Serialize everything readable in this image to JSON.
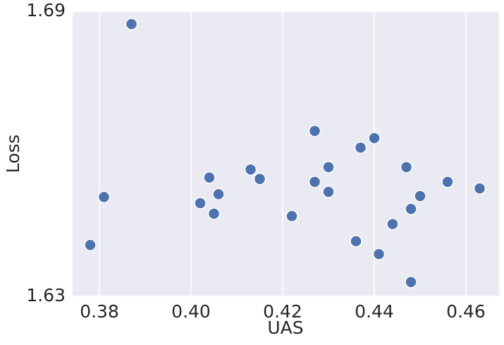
{
  "chart_data": {
    "type": "scatter",
    "x_label": "UAS",
    "y_label": "Loss",
    "x": [
      0.387,
      0.381,
      0.378,
      0.402,
      0.404,
      0.406,
      0.405,
      0.413,
      0.415,
      0.422,
      0.427,
      0.427,
      0.43,
      0.43,
      0.437,
      0.44,
      0.436,
      0.441,
      0.444,
      0.447,
      0.448,
      0.45,
      0.448,
      0.456,
      0.463
    ],
    "values": [
      1.6873,
      1.6509,
      1.6408,
      1.6496,
      1.655,
      1.6515,
      1.6474,
      1.6567,
      1.6547,
      1.6469,
      1.6648,
      1.6541,
      1.6572,
      1.652,
      1.6613,
      1.6633,
      1.6416,
      1.6389,
      1.6452,
      1.6572,
      1.6484,
      1.6511,
      1.633,
      1.6541,
      1.6527
    ],
    "color": "#4c72b0",
    "xlim": [
      0.37415,
      0.46723
    ],
    "xticks": [
      {
        "value": 0.38,
        "label": "0.38"
      },
      {
        "value": 0.4,
        "label": "0.40"
      },
      {
        "value": 0.42,
        "label": "0.42"
      },
      {
        "value": 0.44,
        "label": "0.44"
      },
      {
        "value": 0.46,
        "label": "0.46"
      }
    ],
    "ylim": [
      1.63,
      1.69
    ],
    "yticks": [
      1.63,
      1.69
    ],
    "grid": true
  }
}
